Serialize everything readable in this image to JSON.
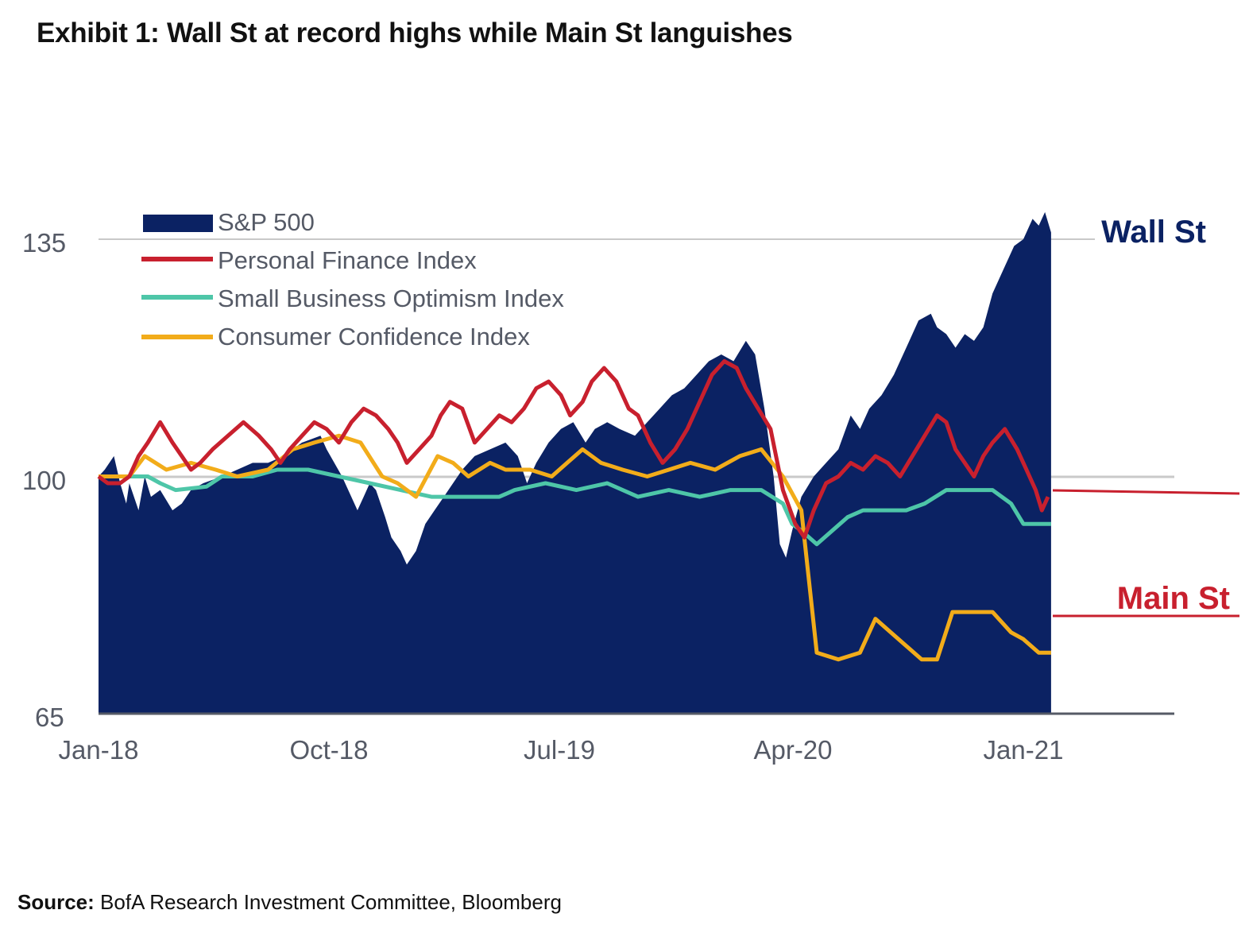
{
  "title": "Exhibit 1: Wall St at record highs while Main St languishes",
  "source": {
    "label": "Source:",
    "text": "BofA Research Investment Committee, Bloomberg"
  },
  "colors": {
    "sp500": "#0b2263",
    "personal_finance": "#c8202e",
    "small_business": "#4ec6a8",
    "consumer_confidence": "#f2ac1a",
    "wall_st": "#0b2263",
    "main_st": "#c8202e",
    "axis_text": "#555a66",
    "gridline": "#bdbdbd"
  },
  "chart_data": {
    "type": "area",
    "title": "Exhibit 1: Wall St at record highs while Main St languishes",
    "xlabel": "",
    "ylabel": "",
    "ylim": [
      65,
      135
    ],
    "yticks": [
      "135",
      "100",
      "65"
    ],
    "ytick_values": [
      135,
      100,
      65
    ],
    "xticks": [
      "Jan-18",
      "Oct-18",
      "Jul-19",
      "Apr-20",
      "Jan-21"
    ],
    "xtick_values": [
      2018.0,
      2018.75,
      2019.5,
      2020.25,
      2021.0
    ],
    "xlim": [
      2018.0,
      2021.5
    ],
    "grid": "horizontal at 135 and 100",
    "legend_position": "top-left",
    "callouts": [
      {
        "text": "Wall St",
        "color": "#0b2263",
        "y": 136
      },
      {
        "text": "Main St",
        "color": "#c8202e",
        "y": 81
      }
    ],
    "series": [
      {
        "name": "S&P 500",
        "style": "area",
        "points": [
          [
            2018.0,
            100
          ],
          [
            2018.02,
            101
          ],
          [
            2018.05,
            103
          ],
          [
            2018.07,
            99
          ],
          [
            2018.09,
            96
          ],
          [
            2018.1,
            99
          ],
          [
            2018.13,
            95
          ],
          [
            2018.15,
            100
          ],
          [
            2018.17,
            97
          ],
          [
            2018.2,
            98
          ],
          [
            2018.24,
            95
          ],
          [
            2018.27,
            96
          ],
          [
            2018.3,
            98
          ],
          [
            2018.34,
            99
          ],
          [
            2018.4,
            100
          ],
          [
            2018.45,
            101
          ],
          [
            2018.5,
            102
          ],
          [
            2018.55,
            102
          ],
          [
            2018.6,
            103
          ],
          [
            2018.66,
            105
          ],
          [
            2018.72,
            106
          ],
          [
            2018.74,
            104
          ],
          [
            2018.79,
            100
          ],
          [
            2018.81,
            98
          ],
          [
            2018.84,
            95
          ],
          [
            2018.86,
            97
          ],
          [
            2018.88,
            99
          ],
          [
            2018.9,
            98
          ],
          [
            2018.93,
            94
          ],
          [
            2018.95,
            91
          ],
          [
            2018.98,
            89
          ],
          [
            2019.0,
            87
          ],
          [
            2019.03,
            89
          ],
          [
            2019.06,
            93
          ],
          [
            2019.09,
            95
          ],
          [
            2019.12,
            97
          ],
          [
            2019.15,
            99
          ],
          [
            2019.18,
            101
          ],
          [
            2019.22,
            103
          ],
          [
            2019.27,
            104
          ],
          [
            2019.32,
            105
          ],
          [
            2019.36,
            103
          ],
          [
            2019.39,
            99
          ],
          [
            2019.42,
            102
          ],
          [
            2019.46,
            105
          ],
          [
            2019.5,
            107
          ],
          [
            2019.54,
            108
          ],
          [
            2019.58,
            105
          ],
          [
            2019.61,
            107
          ],
          [
            2019.65,
            108
          ],
          [
            2019.69,
            107
          ],
          [
            2019.74,
            106
          ],
          [
            2019.78,
            108
          ],
          [
            2019.82,
            110
          ],
          [
            2019.86,
            112
          ],
          [
            2019.9,
            113
          ],
          [
            2019.94,
            115
          ],
          [
            2019.98,
            117
          ],
          [
            2020.02,
            118
          ],
          [
            2020.06,
            117
          ],
          [
            2020.1,
            120
          ],
          [
            2020.13,
            118
          ],
          [
            2020.16,
            110
          ],
          [
            2020.19,
            100
          ],
          [
            2020.21,
            90
          ],
          [
            2020.23,
            88
          ],
          [
            2020.25,
            92
          ],
          [
            2020.28,
            97
          ],
          [
            2020.32,
            100
          ],
          [
            2020.36,
            102
          ],
          [
            2020.4,
            104
          ],
          [
            2020.44,
            109
          ],
          [
            2020.47,
            107
          ],
          [
            2020.5,
            110
          ],
          [
            2020.54,
            112
          ],
          [
            2020.58,
            115
          ],
          [
            2020.62,
            119
          ],
          [
            2020.66,
            123
          ],
          [
            2020.7,
            124
          ],
          [
            2020.72,
            122
          ],
          [
            2020.75,
            121
          ],
          [
            2020.78,
            119
          ],
          [
            2020.81,
            121
          ],
          [
            2020.84,
            120
          ],
          [
            2020.87,
            122
          ],
          [
            2020.9,
            127
          ],
          [
            2020.94,
            131
          ],
          [
            2020.97,
            134
          ],
          [
            2021.0,
            135
          ],
          [
            2021.03,
            138
          ],
          [
            2021.05,
            137
          ],
          [
            2021.07,
            139
          ],
          [
            2021.09,
            136
          ]
        ]
      },
      {
        "name": "Personal Finance Index",
        "style": "line",
        "points": [
          [
            2018.0,
            100
          ],
          [
            2018.03,
            99
          ],
          [
            2018.07,
            99
          ],
          [
            2018.1,
            100
          ],
          [
            2018.13,
            103
          ],
          [
            2018.16,
            105
          ],
          [
            2018.2,
            108
          ],
          [
            2018.24,
            105
          ],
          [
            2018.27,
            103
          ],
          [
            2018.3,
            101
          ],
          [
            2018.33,
            102
          ],
          [
            2018.37,
            104
          ],
          [
            2018.42,
            106
          ],
          [
            2018.47,
            108
          ],
          [
            2018.52,
            106
          ],
          [
            2018.56,
            104
          ],
          [
            2018.59,
            102
          ],
          [
            2018.62,
            104
          ],
          [
            2018.66,
            106
          ],
          [
            2018.7,
            108
          ],
          [
            2018.74,
            107
          ],
          [
            2018.78,
            105
          ],
          [
            2018.82,
            108
          ],
          [
            2018.86,
            110
          ],
          [
            2018.9,
            109
          ],
          [
            2018.94,
            107
          ],
          [
            2018.97,
            105
          ],
          [
            2019.0,
            102
          ],
          [
            2019.04,
            104
          ],
          [
            2019.08,
            106
          ],
          [
            2019.11,
            109
          ],
          [
            2019.14,
            111
          ],
          [
            2019.18,
            110
          ],
          [
            2019.22,
            105
          ],
          [
            2019.26,
            107
          ],
          [
            2019.3,
            109
          ],
          [
            2019.34,
            108
          ],
          [
            2019.38,
            110
          ],
          [
            2019.42,
            113
          ],
          [
            2019.46,
            114
          ],
          [
            2019.5,
            112
          ],
          [
            2019.53,
            109
          ],
          [
            2019.57,
            111
          ],
          [
            2019.6,
            114
          ],
          [
            2019.64,
            116
          ],
          [
            2019.68,
            114
          ],
          [
            2019.72,
            110
          ],
          [
            2019.75,
            109
          ],
          [
            2019.79,
            105
          ],
          [
            2019.83,
            102
          ],
          [
            2019.87,
            104
          ],
          [
            2019.91,
            107
          ],
          [
            2019.95,
            111
          ],
          [
            2019.99,
            115
          ],
          [
            2020.03,
            117
          ],
          [
            2020.07,
            116
          ],
          [
            2020.1,
            113
          ],
          [
            2020.14,
            110
          ],
          [
            2020.18,
            107
          ],
          [
            2020.22,
            98
          ],
          [
            2020.26,
            93
          ],
          [
            2020.29,
            91
          ],
          [
            2020.32,
            95
          ],
          [
            2020.36,
            99
          ],
          [
            2020.4,
            100
          ],
          [
            2020.44,
            102
          ],
          [
            2020.48,
            101
          ],
          [
            2020.52,
            103
          ],
          [
            2020.56,
            102
          ],
          [
            2020.6,
            100
          ],
          [
            2020.64,
            103
          ],
          [
            2020.68,
            106
          ],
          [
            2020.72,
            109
          ],
          [
            2020.75,
            108
          ],
          [
            2020.78,
            104
          ],
          [
            2020.81,
            102
          ],
          [
            2020.84,
            100
          ],
          [
            2020.87,
            103
          ],
          [
            2020.9,
            105
          ],
          [
            2020.94,
            107
          ],
          [
            2020.98,
            104
          ],
          [
            2021.01,
            101
          ],
          [
            2021.04,
            98
          ],
          [
            2021.06,
            95
          ],
          [
            2021.08,
            97
          ]
        ]
      },
      {
        "name": "Small Business Optimism Index",
        "style": "line",
        "points": [
          [
            2018.0,
            100
          ],
          [
            2018.16,
            100
          ],
          [
            2018.2,
            99
          ],
          [
            2018.25,
            98
          ],
          [
            2018.35,
            98.5
          ],
          [
            2018.4,
            100
          ],
          [
            2018.5,
            100
          ],
          [
            2018.58,
            101
          ],
          [
            2018.68,
            101
          ],
          [
            2018.78,
            100
          ],
          [
            2018.88,
            99
          ],
          [
            2018.98,
            98
          ],
          [
            2019.08,
            97
          ],
          [
            2019.2,
            97
          ],
          [
            2019.3,
            97
          ],
          [
            2019.35,
            98
          ],
          [
            2019.45,
            99
          ],
          [
            2019.55,
            98
          ],
          [
            2019.65,
            99
          ],
          [
            2019.75,
            97
          ],
          [
            2019.85,
            98
          ],
          [
            2019.95,
            97
          ],
          [
            2020.05,
            98
          ],
          [
            2020.15,
            98
          ],
          [
            2020.22,
            96
          ],
          [
            2020.25,
            93
          ],
          [
            2020.28,
            92
          ],
          [
            2020.33,
            90
          ],
          [
            2020.38,
            92
          ],
          [
            2020.43,
            94
          ],
          [
            2020.48,
            95
          ],
          [
            2020.55,
            95
          ],
          [
            2020.62,
            95
          ],
          [
            2020.68,
            96
          ],
          [
            2020.75,
            98
          ],
          [
            2020.82,
            98
          ],
          [
            2020.9,
            98
          ],
          [
            2020.96,
            96
          ],
          [
            2021.0,
            93
          ],
          [
            2021.05,
            93
          ],
          [
            2021.09,
            93
          ]
        ]
      },
      {
        "name": "Consumer Confidence Index",
        "style": "line",
        "points": [
          [
            2018.0,
            100
          ],
          [
            2018.1,
            100
          ],
          [
            2018.15,
            103
          ],
          [
            2018.22,
            101
          ],
          [
            2018.3,
            102
          ],
          [
            2018.38,
            101
          ],
          [
            2018.45,
            100
          ],
          [
            2018.55,
            101
          ],
          [
            2018.63,
            104
          ],
          [
            2018.7,
            105
          ],
          [
            2018.78,
            106
          ],
          [
            2018.85,
            105
          ],
          [
            2018.92,
            100
          ],
          [
            2018.97,
            99
          ],
          [
            2019.03,
            97
          ],
          [
            2019.1,
            103
          ],
          [
            2019.15,
            102
          ],
          [
            2019.2,
            100
          ],
          [
            2019.27,
            102
          ],
          [
            2019.32,
            101
          ],
          [
            2019.4,
            101
          ],
          [
            2019.47,
            100
          ],
          [
            2019.52,
            102
          ],
          [
            2019.57,
            104
          ],
          [
            2019.63,
            102
          ],
          [
            2019.7,
            101
          ],
          [
            2019.78,
            100
          ],
          [
            2019.85,
            101
          ],
          [
            2019.92,
            102
          ],
          [
            2020.0,
            101
          ],
          [
            2020.08,
            103
          ],
          [
            2020.15,
            104
          ],
          [
            2020.22,
            100
          ],
          [
            2020.28,
            95
          ],
          [
            2020.33,
            74
          ],
          [
            2020.4,
            73
          ],
          [
            2020.47,
            74
          ],
          [
            2020.52,
            79
          ],
          [
            2020.57,
            77
          ],
          [
            2020.62,
            75
          ],
          [
            2020.67,
            73
          ],
          [
            2020.72,
            73
          ],
          [
            2020.77,
            80
          ],
          [
            2020.83,
            80
          ],
          [
            2020.9,
            80
          ],
          [
            2020.96,
            77
          ],
          [
            2021.0,
            76
          ],
          [
            2021.05,
            74
          ],
          [
            2021.09,
            74
          ]
        ]
      }
    ],
    "legend": [
      "S&P 500",
      "Personal Finance Index",
      "Small Business Optimism Index",
      "Consumer Confidence Index"
    ]
  }
}
